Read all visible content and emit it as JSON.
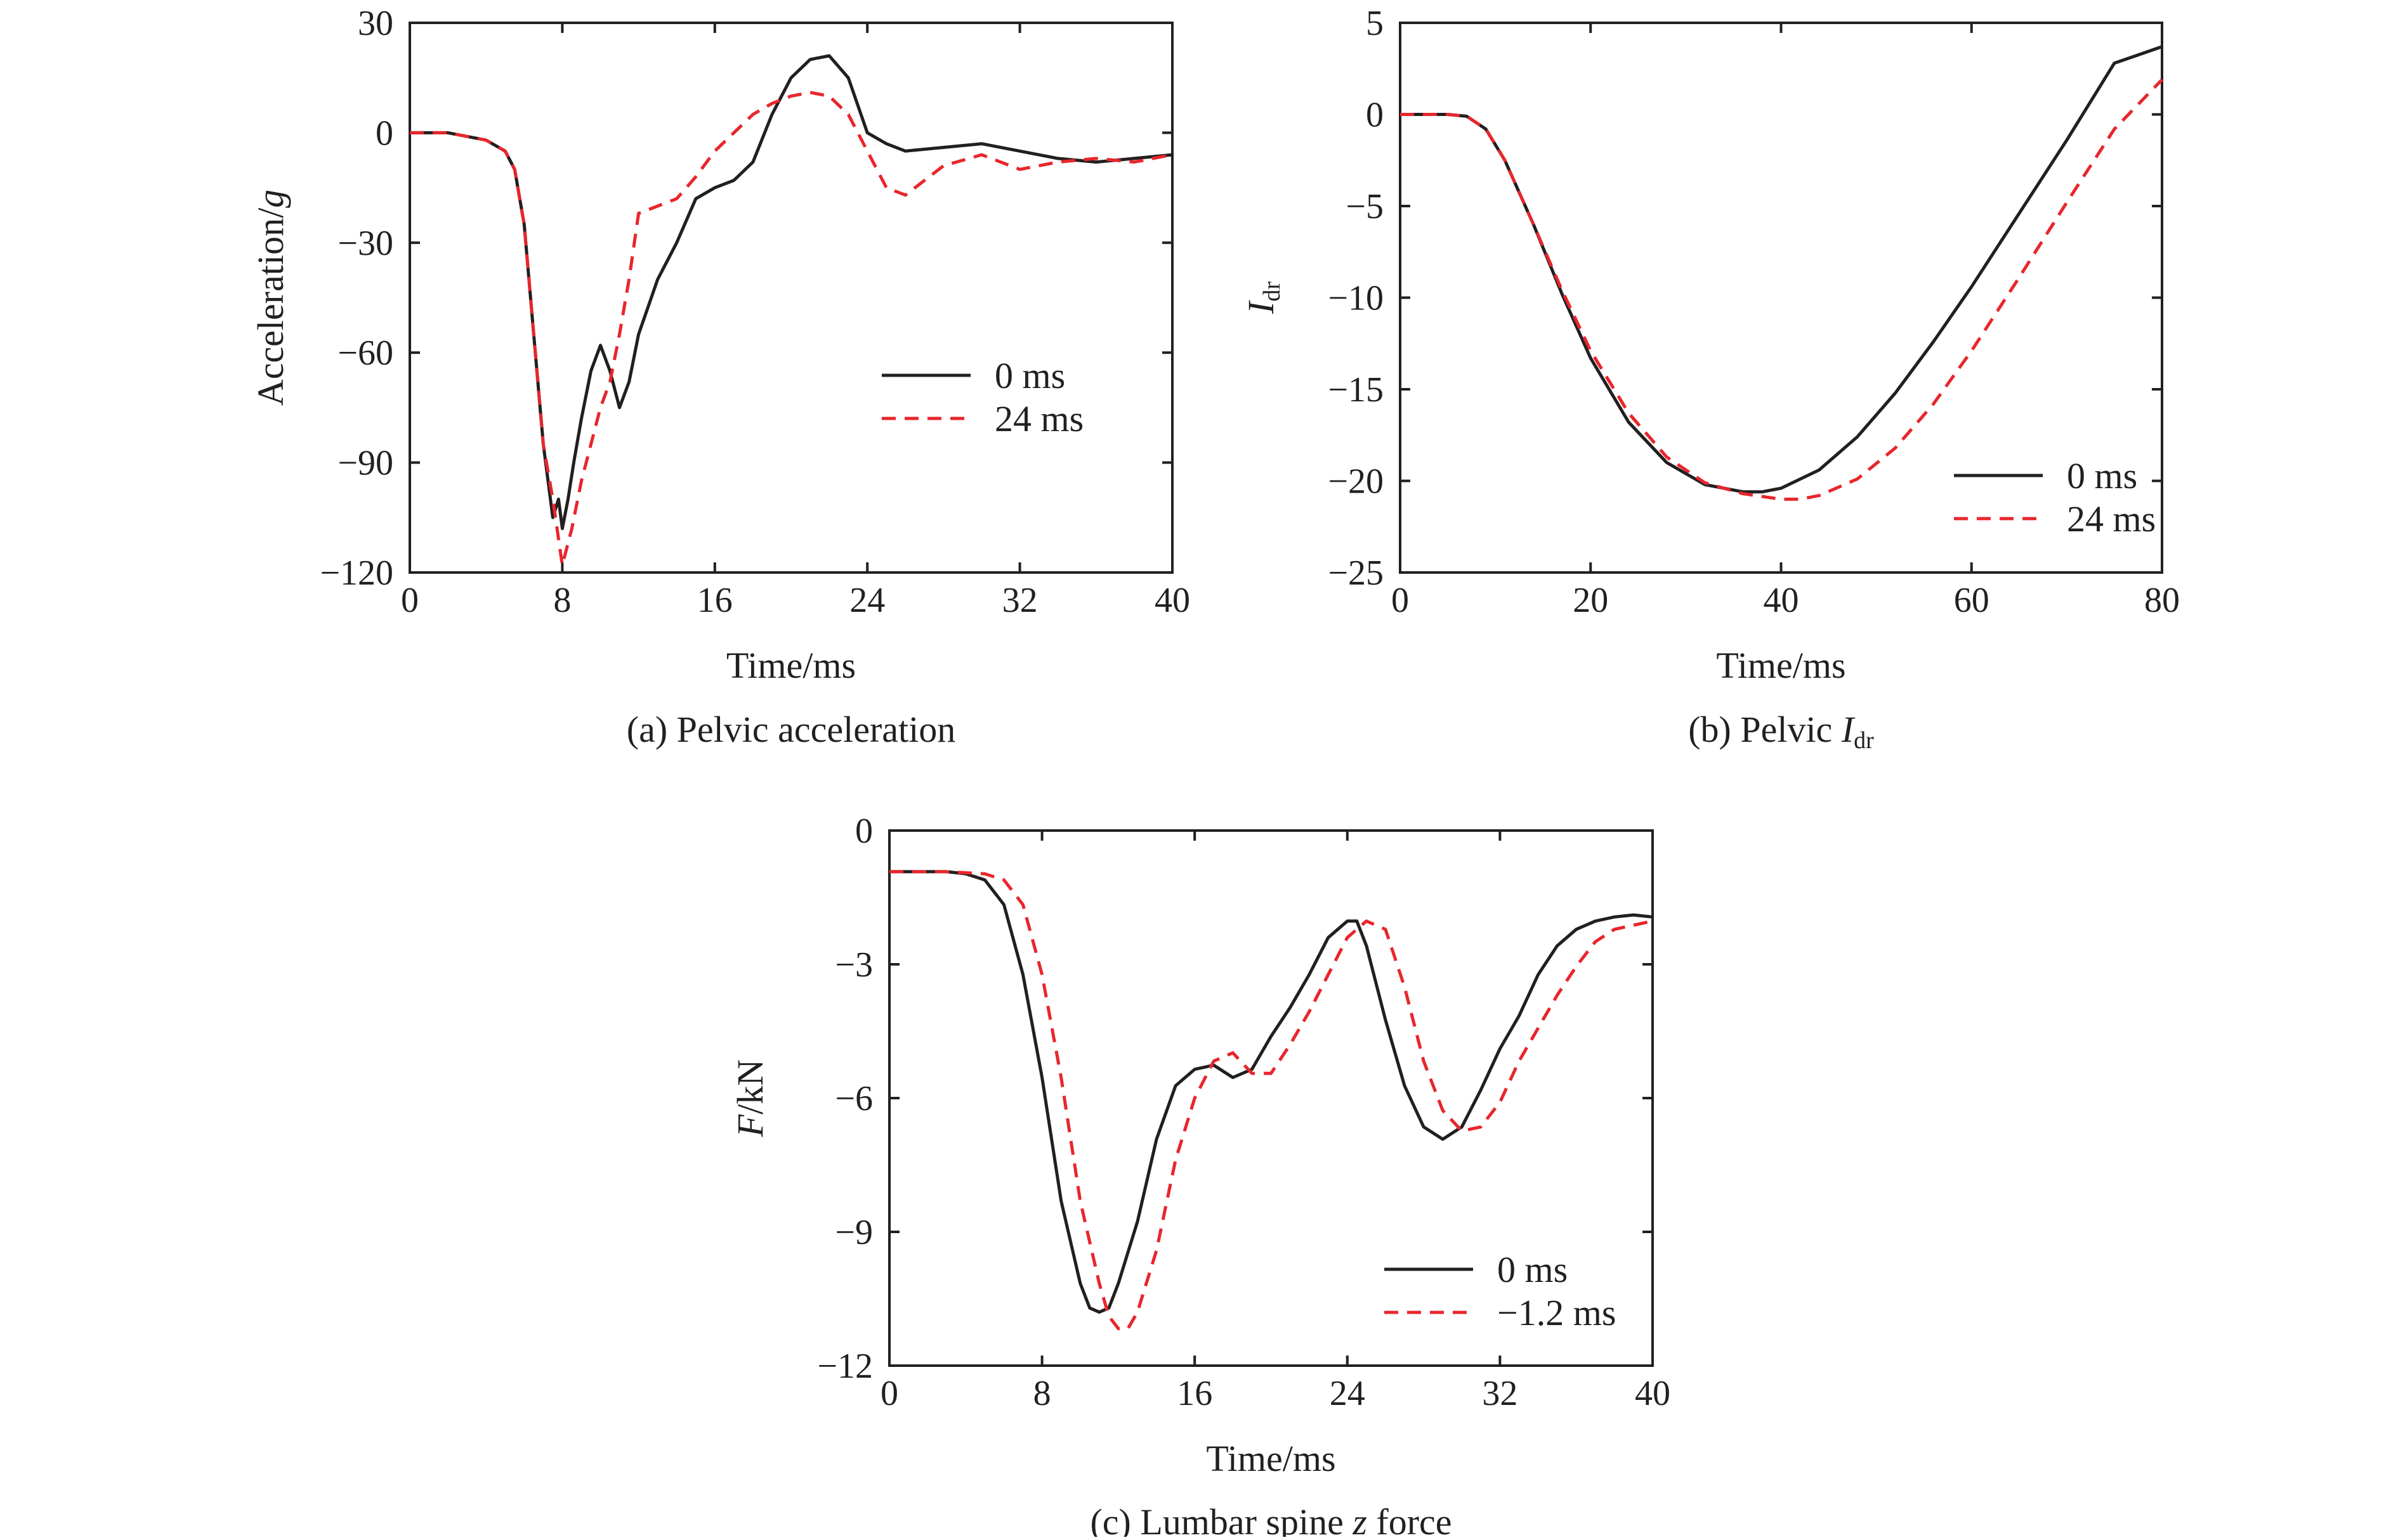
{
  "chart_data": [
    {
      "type": "line",
      "caption_prefix": "(a) ",
      "caption_text": "Pelvic acceleration",
      "caption_sub": "",
      "caption_tail": "",
      "xlabel": "Time/ms",
      "ylabel_main": "Acceleration/",
      "ylabel_italic": "g",
      "ylabel_sub": "",
      "xlim": [
        0,
        40
      ],
      "ylim": [
        -120,
        30
      ],
      "xticks": [
        "0",
        "8",
        "16",
        "24",
        "32",
        "40"
      ],
      "yticks": [
        "30",
        "0",
        "−30",
        "−60",
        "−90",
        "−120"
      ],
      "grid": false,
      "legend_position": "center-right",
      "series": [
        {
          "name": "0 ms",
          "style": "solid",
          "color": "#231f20",
          "x": [
            0,
            2,
            4,
            5,
            5.5,
            6,
            6.5,
            7,
            7.5,
            7.8,
            8,
            8.3,
            8.6,
            9,
            9.5,
            10,
            10.5,
            11,
            11.5,
            12,
            13,
            14,
            15,
            16,
            17,
            18,
            19,
            20,
            21,
            22,
            23,
            24,
            25,
            26,
            28,
            30,
            32,
            34,
            36,
            38,
            40
          ],
          "y": [
            0,
            0,
            -2,
            -5,
            -10,
            -25,
            -55,
            -85,
            -105,
            -100,
            -108,
            -100,
            -90,
            -78,
            -65,
            -58,
            -65,
            -75,
            -68,
            -55,
            -40,
            -30,
            -18,
            -15,
            -13,
            -8,
            5,
            15,
            20,
            21,
            15,
            0,
            -3,
            -5,
            -4,
            -3,
            -5,
            -7,
            -8,
            -7,
            -6
          ]
        },
        {
          "name": "24 ms",
          "style": "dashed",
          "color": "#e8262c",
          "x": [
            0,
            2,
            4,
            5,
            5.5,
            6,
            6.5,
            7,
            7.5,
            8,
            8.5,
            9,
            9.5,
            10,
            10.5,
            11,
            11.5,
            12,
            13,
            14,
            15,
            16,
            17,
            18,
            19,
            20,
            21,
            22,
            23,
            24,
            25,
            26,
            27,
            28,
            30,
            32,
            34,
            36,
            38,
            40
          ],
          "y": [
            0,
            0,
            -2,
            -5,
            -10,
            -25,
            -55,
            -85,
            -100,
            -118,
            -108,
            -95,
            -85,
            -75,
            -68,
            -55,
            -40,
            -22,
            -20,
            -18,
            -12,
            -5,
            0,
            5,
            8,
            10,
            11,
            10,
            5,
            -5,
            -15,
            -17,
            -13,
            -9,
            -6,
            -10,
            -8,
            -7,
            -8,
            -6
          ]
        }
      ]
    },
    {
      "type": "line",
      "caption_prefix": "(b) ",
      "caption_text": "Pelvic ",
      "caption_sub": "dr",
      "caption_tail": "",
      "xlabel": "Time/ms",
      "ylabel_main": "",
      "ylabel_italic": "I",
      "ylabel_sub": "dr",
      "xlim": [
        0,
        80
      ],
      "ylim": [
        -25,
        5
      ],
      "xticks": [
        "0",
        "20",
        "40",
        "60",
        "80"
      ],
      "yticks": [
        "5",
        "0",
        "−5",
        "−10",
        "−15",
        "−20",
        "−25"
      ],
      "grid": false,
      "legend_position": "bottom-right",
      "series": [
        {
          "name": "0 ms",
          "style": "solid",
          "color": "#231f20",
          "x": [
            0,
            5,
            7,
            9,
            11,
            14,
            17,
            20,
            24,
            28,
            32,
            36,
            38,
            40,
            44,
            48,
            52,
            56,
            60,
            65,
            70,
            75,
            80
          ],
          "y": [
            0,
            0,
            -0.1,
            -0.8,
            -2.5,
            -6,
            -9.8,
            -13.3,
            -16.8,
            -19,
            -20.2,
            -20.6,
            -20.6,
            -20.4,
            -19.4,
            -17.6,
            -15.2,
            -12.4,
            -9.4,
            -5.4,
            -1.4,
            2.8,
            3.7
          ]
        },
        {
          "name": "24 ms",
          "style": "dashed",
          "color": "#e8262c",
          "x": [
            0,
            5,
            7,
            9,
            11,
            14,
            17,
            20,
            24,
            28,
            32,
            36,
            40,
            42,
            44,
            48,
            52,
            56,
            60,
            65,
            70,
            75,
            80
          ],
          "y": [
            0,
            0,
            -0.1,
            -0.8,
            -2.5,
            -6,
            -9.6,
            -12.9,
            -16.3,
            -18.7,
            -20.1,
            -20.7,
            -21,
            -21,
            -20.8,
            -19.9,
            -18.2,
            -15.8,
            -12.9,
            -8.9,
            -4.8,
            -0.8,
            1.9
          ]
        }
      ]
    },
    {
      "type": "line",
      "caption_prefix": "(c) ",
      "caption_text": "Lumbar spine ",
      "caption_sub": "",
      "caption_tail": " force",
      "xlabel": "Time/ms",
      "ylabel_main": "/kN",
      "ylabel_italic": "F",
      "ylabel_sub": "",
      "xlim": [
        0,
        40
      ],
      "ylim": [
        -12,
        1
      ],
      "xticks": [
        "0",
        "8",
        "16",
        "24",
        "32",
        "40"
      ],
      "yticks": [
        "0",
        "−3",
        "−6",
        "−9",
        "−12"
      ],
      "grid": false,
      "legend_position": "bottom-right",
      "series": [
        {
          "name": "0 ms",
          "style": "solid",
          "color": "#231f20",
          "x": [
            0,
            3,
            4,
            5,
            6,
            7,
            8,
            9,
            10,
            10.5,
            11,
            11.5,
            12,
            13,
            14,
            15,
            16,
            17,
            18,
            19,
            20,
            21,
            22,
            23,
            24,
            24.5,
            25,
            26,
            27,
            28,
            29,
            30,
            31,
            32,
            33,
            34,
            35,
            36,
            37,
            38,
            39,
            40
          ],
          "y": [
            0,
            0,
            -0.05,
            -0.2,
            -0.8,
            -2.5,
            -5,
            -8,
            -10,
            -10.6,
            -10.7,
            -10.6,
            -10,
            -8.5,
            -6.5,
            -5.2,
            -4.8,
            -4.7,
            -5,
            -4.8,
            -4,
            -3.3,
            -2.5,
            -1.6,
            -1.2,
            -1.2,
            -1.8,
            -3.6,
            -5.2,
            -6.2,
            -6.5,
            -6.2,
            -5.3,
            -4.3,
            -3.5,
            -2.5,
            -1.8,
            -1.4,
            -1.2,
            -1.1,
            -1.05,
            -1.1
          ]
        },
        {
          "name": "−1.2 ms",
          "style": "dashed",
          "color": "#e8262c",
          "x": [
            0,
            3,
            5,
            6,
            7,
            8,
            9,
            10,
            11,
            11.5,
            12,
            12.5,
            13,
            14,
            15,
            16,
            17,
            18,
            19,
            20,
            21,
            22,
            23,
            24,
            25,
            26,
            27,
            28,
            29,
            30,
            31,
            32,
            33,
            34,
            35,
            36,
            37,
            38,
            39,
            40
          ],
          "y": [
            0,
            0,
            -0.05,
            -0.2,
            -0.8,
            -2.5,
            -5,
            -8,
            -10,
            -10.8,
            -11.1,
            -11.1,
            -10.7,
            -9.2,
            -7,
            -5.5,
            -4.6,
            -4.4,
            -4.9,
            -4.9,
            -4.2,
            -3.4,
            -2.5,
            -1.6,
            -1.2,
            -1.4,
            -2.8,
            -4.6,
            -5.8,
            -6.3,
            -6.2,
            -5.6,
            -4.6,
            -3.8,
            -3,
            -2.3,
            -1.7,
            -1.4,
            -1.3,
            -1.2
          ]
        }
      ]
    }
  ]
}
